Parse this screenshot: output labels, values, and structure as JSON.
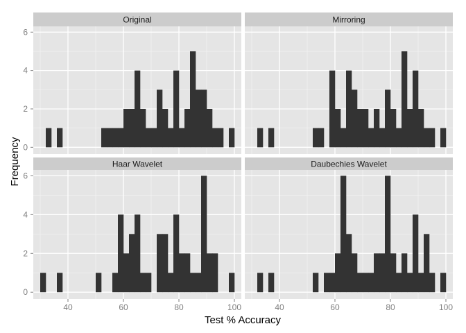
{
  "chart_data": {
    "type": "bar",
    "xlabel": "Test % Accuracy",
    "ylabel": "Frequency",
    "xlim": [
      27.5,
      102.5
    ],
    "ylim": [
      -0.35,
      6.3
    ],
    "x_ticks": [
      40,
      60,
      80,
      100
    ],
    "x_tick_labels": [
      "40",
      "60",
      "80",
      "100"
    ],
    "y_ticks": [
      0,
      2,
      4,
      6
    ],
    "y_tick_labels": [
      "0",
      "2",
      "4",
      "6"
    ],
    "minor_x_ticks": [
      30,
      50,
      70,
      90
    ],
    "minor_y_ticks": [
      1,
      3,
      5
    ],
    "bin_width": 2,
    "grid": true,
    "colors": {
      "panel_bg": "#e5e5e5",
      "grid_major": "#ffffff",
      "grid_minor": "#f2f2f2",
      "strip_bg": "#cccccc",
      "bar": "#333333"
    },
    "facets": [
      {
        "name": "Original",
        "bins": [
          {
            "x": 33,
            "count": 1
          },
          {
            "x": 37,
            "count": 1
          },
          {
            "x": 53,
            "count": 1
          },
          {
            "x": 55,
            "count": 1
          },
          {
            "x": 57,
            "count": 1
          },
          {
            "x": 59,
            "count": 1
          },
          {
            "x": 61,
            "count": 2
          },
          {
            "x": 63,
            "count": 2
          },
          {
            "x": 65,
            "count": 4
          },
          {
            "x": 67,
            "count": 2
          },
          {
            "x": 69,
            "count": 1
          },
          {
            "x": 71,
            "count": 1
          },
          {
            "x": 73,
            "count": 3
          },
          {
            "x": 75,
            "count": 2
          },
          {
            "x": 77,
            "count": 1
          },
          {
            "x": 79,
            "count": 4
          },
          {
            "x": 81,
            "count": 1
          },
          {
            "x": 83,
            "count": 2
          },
          {
            "x": 85,
            "count": 5
          },
          {
            "x": 87,
            "count": 3
          },
          {
            "x": 89,
            "count": 3
          },
          {
            "x": 91,
            "count": 2
          },
          {
            "x": 93,
            "count": 1
          },
          {
            "x": 95,
            "count": 1
          },
          {
            "x": 99,
            "count": 1
          }
        ]
      },
      {
        "name": "Mirroring",
        "bins": [
          {
            "x": 33,
            "count": 1
          },
          {
            "x": 37,
            "count": 1
          },
          {
            "x": 53,
            "count": 1
          },
          {
            "x": 55,
            "count": 1
          },
          {
            "x": 59,
            "count": 4
          },
          {
            "x": 61,
            "count": 2
          },
          {
            "x": 63,
            "count": 1
          },
          {
            "x": 65,
            "count": 4
          },
          {
            "x": 67,
            "count": 3
          },
          {
            "x": 69,
            "count": 2
          },
          {
            "x": 71,
            "count": 2
          },
          {
            "x": 73,
            "count": 1
          },
          {
            "x": 75,
            "count": 2
          },
          {
            "x": 77,
            "count": 1
          },
          {
            "x": 79,
            "count": 3
          },
          {
            "x": 81,
            "count": 2
          },
          {
            "x": 83,
            "count": 1
          },
          {
            "x": 85,
            "count": 5
          },
          {
            "x": 87,
            "count": 2
          },
          {
            "x": 89,
            "count": 4
          },
          {
            "x": 91,
            "count": 2
          },
          {
            "x": 93,
            "count": 1
          },
          {
            "x": 95,
            "count": 1
          },
          {
            "x": 99,
            "count": 1
          }
        ]
      },
      {
        "name": "Haar Wavelet",
        "bins": [
          {
            "x": 31,
            "count": 1
          },
          {
            "x": 37,
            "count": 1
          },
          {
            "x": 51,
            "count": 1
          },
          {
            "x": 57,
            "count": 1
          },
          {
            "x": 59,
            "count": 4
          },
          {
            "x": 61,
            "count": 2
          },
          {
            "x": 63,
            "count": 3
          },
          {
            "x": 65,
            "count": 4
          },
          {
            "x": 67,
            "count": 1
          },
          {
            "x": 69,
            "count": 1
          },
          {
            "x": 73,
            "count": 3
          },
          {
            "x": 75,
            "count": 3
          },
          {
            "x": 77,
            "count": 1
          },
          {
            "x": 79,
            "count": 4
          },
          {
            "x": 81,
            "count": 2
          },
          {
            "x": 83,
            "count": 2
          },
          {
            "x": 85,
            "count": 1
          },
          {
            "x": 87,
            "count": 1
          },
          {
            "x": 89,
            "count": 6
          },
          {
            "x": 91,
            "count": 2
          },
          {
            "x": 93,
            "count": 2
          },
          {
            "x": 99,
            "count": 1
          }
        ]
      },
      {
        "name": "Daubechies Wavelet",
        "bins": [
          {
            "x": 33,
            "count": 1
          },
          {
            "x": 37,
            "count": 1
          },
          {
            "x": 53,
            "count": 1
          },
          {
            "x": 57,
            "count": 1
          },
          {
            "x": 59,
            "count": 1
          },
          {
            "x": 61,
            "count": 2
          },
          {
            "x": 63,
            "count": 6
          },
          {
            "x": 65,
            "count": 3
          },
          {
            "x": 67,
            "count": 2
          },
          {
            "x": 69,
            "count": 1
          },
          {
            "x": 71,
            "count": 1
          },
          {
            "x": 73,
            "count": 1
          },
          {
            "x": 75,
            "count": 2
          },
          {
            "x": 77,
            "count": 2
          },
          {
            "x": 79,
            "count": 6
          },
          {
            "x": 81,
            "count": 2
          },
          {
            "x": 83,
            "count": 1
          },
          {
            "x": 85,
            "count": 2
          },
          {
            "x": 87,
            "count": 1
          },
          {
            "x": 89,
            "count": 4
          },
          {
            "x": 91,
            "count": 1
          },
          {
            "x": 93,
            "count": 3
          },
          {
            "x": 95,
            "count": 1
          },
          {
            "x": 99,
            "count": 1
          }
        ]
      }
    ]
  }
}
